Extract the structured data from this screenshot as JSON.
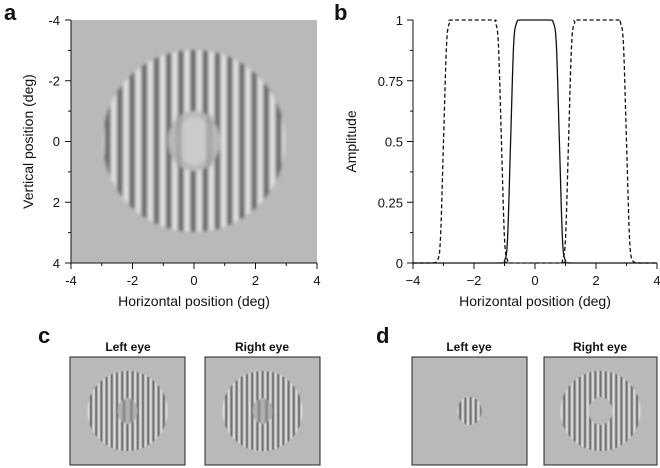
{
  "panels": {
    "a": "a",
    "b": "b",
    "c": "c",
    "d": "d"
  },
  "colors": {
    "background_gray": "#b9b9b9",
    "grating_dark": "#6e6e6e",
    "grating_light": "#e2e2e2",
    "axis": "#111111",
    "curve": "#111111"
  },
  "panel_a": {
    "xlabel": "Horizontal position (deg)",
    "ylabel": "Vertical position (deg)",
    "x_ticks": [
      "-4",
      "-2",
      "0",
      "2",
      "4"
    ],
    "y_ticks": [
      "-4",
      "-2",
      "0",
      "2",
      "4"
    ],
    "outer_radius_deg": 3.0,
    "inner_radius_deg": 1.0,
    "spatial_frequency_cpd": 2.5
  },
  "panel_c": {
    "left_label": "Left eye",
    "right_label": "Right eye"
  },
  "panel_d": {
    "left_label": "Left eye",
    "right_label": "Right eye"
  },
  "chart_data": {
    "type": "line",
    "title": "",
    "xlabel": "Horizontal position (deg)",
    "ylabel": "Amplitude",
    "xlim": [
      -4,
      4
    ],
    "ylim": [
      0,
      1
    ],
    "x_ticks": [
      "−4",
      "−2",
      "0",
      "2",
      "4"
    ],
    "y_ticks": [
      "0",
      "0.25",
      "0.5",
      "0.75",
      "1"
    ],
    "grid": false,
    "series": [
      {
        "style": "solid",
        "x": [
          -4.0,
          -1.2,
          -1.0,
          -0.9,
          -0.8,
          -0.7,
          -0.6,
          -0.5,
          0.0,
          0.5,
          0.6,
          0.7,
          0.8,
          0.9,
          1.0,
          1.2,
          4.0
        ],
        "values": [
          0.0,
          0.0,
          0.01,
          0.1,
          0.5,
          0.9,
          0.99,
          1.0,
          1.0,
          1.0,
          0.99,
          0.9,
          0.5,
          0.1,
          0.01,
          0.0,
          0.0
        ]
      },
      {
        "style": "dashed",
        "x": [
          -4.0,
          -3.4,
          -3.2,
          -3.1,
          -3.0,
          -2.9,
          -2.8,
          -2.7,
          -1.4,
          -1.3,
          -1.2,
          -1.1,
          -1.0,
          -0.9,
          -0.8,
          0.0,
          0.8,
          0.9,
          1.0,
          1.1,
          1.2,
          1.3,
          1.4,
          2.7,
          2.8,
          2.9,
          3.0,
          3.1,
          3.2,
          3.4,
          4.0
        ],
        "values": [
          0.0,
          0.0,
          0.01,
          0.1,
          0.5,
          0.9,
          0.99,
          1.0,
          1.0,
          0.99,
          0.9,
          0.5,
          0.1,
          0.01,
          0.0,
          0.0,
          0.0,
          0.01,
          0.1,
          0.5,
          0.9,
          0.99,
          1.0,
          1.0,
          0.99,
          0.9,
          0.5,
          0.1,
          0.01,
          0.0,
          0.0
        ]
      }
    ]
  }
}
